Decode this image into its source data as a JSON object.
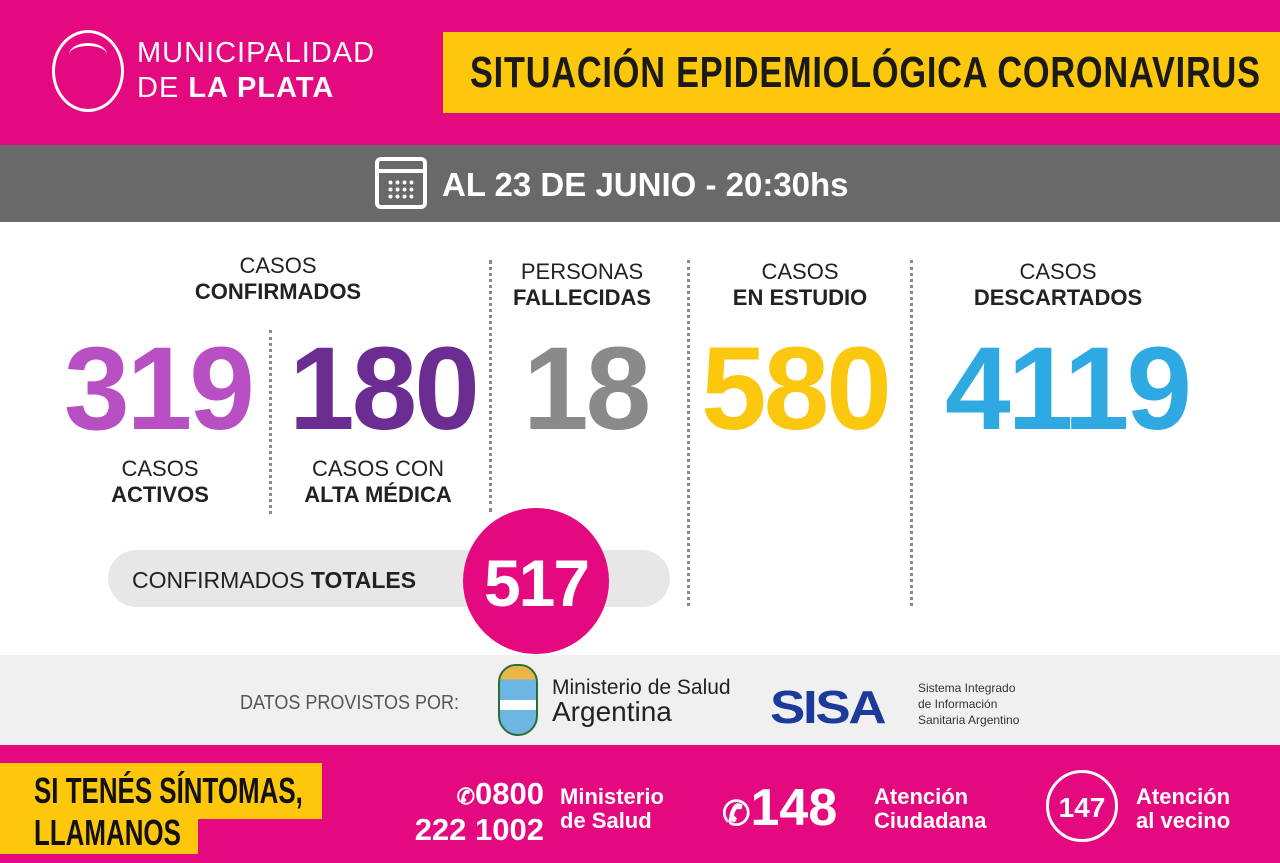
{
  "header": {
    "org_line1": "MUNICIPALIDAD",
    "org_line2_prefix": "DE ",
    "org_line2_bold": "LA PLATA",
    "title": "SITUACIÓN EPIDEMIOLÓGICA CORONAVIRUS"
  },
  "date": {
    "text": "AL 23 DE JUNIO - 20:30hs"
  },
  "stats": {
    "confirmados": {
      "line1": "CASOS",
      "line2": "CONFIRMADOS"
    },
    "activos": {
      "value": "319",
      "line1": "CASOS",
      "line2": "ACTIVOS",
      "color": "#b84fc2"
    },
    "alta": {
      "value": "180",
      "line1": "CASOS CON",
      "line2": "ALTA MÉDICA",
      "color": "#6b2d92"
    },
    "fallecidas": {
      "value": "18",
      "line1": "PERSONAS",
      "line2": "FALLECIDAS",
      "color": "#8a8a8a"
    },
    "estudio": {
      "value": "580",
      "line1": "CASOS",
      "line2": "EN ESTUDIO",
      "color": "#fcc80f"
    },
    "descartados": {
      "value": "4119",
      "line1": "CASOS",
      "line2": "DESCARTADOS",
      "color": "#2fa9e1"
    }
  },
  "totals": {
    "label_regular": "CONFIRMADOS ",
    "label_bold": "TOTALES",
    "value": "517"
  },
  "sources": {
    "label": "DATOS PROVISTOS POR:",
    "ministerio_line1": "Ministerio de Salud",
    "ministerio_line2": "Argentina",
    "sisa": "SISA",
    "sisa_line1": "Sistema Integrado",
    "sisa_line2": "de Información",
    "sisa_line3": "Sanitaria Argentino"
  },
  "footer": {
    "cta_line1": "SI TENÉS SÍNTOMAS,",
    "cta_line2": "LLAMANOS",
    "phones": [
      {
        "number_line1": "0800",
        "number_line2": "222 1002",
        "label_line1": "Ministerio",
        "label_line2": "de Salud"
      },
      {
        "number": "148",
        "label_line1": "Atención",
        "label_line2": "Ciudadana"
      },
      {
        "number": "147",
        "label_line1": "Atención",
        "label_line2": "al vecino"
      }
    ]
  }
}
